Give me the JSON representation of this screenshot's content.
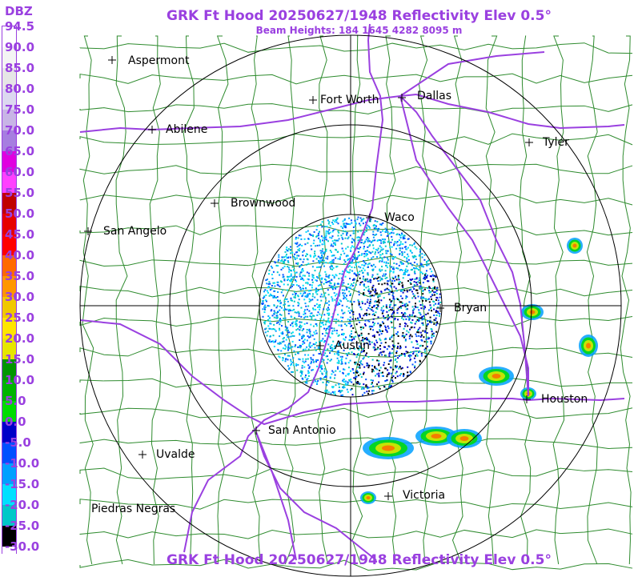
{
  "title_top": "GRK Ft Hood 20250627/1948 Reflectivity Elev 0.5°",
  "subtitle": "Beam Heights: 184 1645 4282 8095 m",
  "title_bottom": "GRK Ft Hood 20250627/1948 Reflectivity Elev 0.5°",
  "legend": {
    "unit": "DBZ",
    "labels": [
      "94.5",
      "90.0",
      "85.0",
      "80.0",
      "75.0",
      "70.0",
      "65.0",
      "60.0",
      "55.0",
      "50.0",
      "45.0",
      "40.0",
      "35.0",
      "30.0",
      "25.0",
      "20.0",
      "15.0",
      "10.0",
      "5.0",
      "0.0",
      "-5.0",
      "-10.0",
      "-15.0",
      "-20.0",
      "-25.0",
      "-30.0"
    ],
    "colors": [
      "#ffffff",
      "#f4f4f4",
      "#e6e6e6",
      "#dcd8f0",
      "#c8b4e6",
      "#a67ee0",
      "#e000e0",
      "#ff40ff",
      "#c00000",
      "#e60000",
      "#ff0000",
      "#ff6a00",
      "#ff9600",
      "#f0c800",
      "#ffe600",
      "#e6e600",
      "#009600",
      "#00b400",
      "#00dc00",
      "#0000c8",
      "#0050ff",
      "#00a0ff",
      "#00e0ff",
      "#00c8c8",
      "#000000",
      "#ffffff"
    ]
  },
  "cities": [
    {
      "name": "Aspermont",
      "marker": "plus"
    },
    {
      "name": "Fort Worth",
      "marker": "plus"
    },
    {
      "name": "Dallas",
      "marker": "plus"
    },
    {
      "name": "Abilene",
      "marker": "plus"
    },
    {
      "name": "Tyler",
      "marker": "plus"
    },
    {
      "name": "Brownwood",
      "marker": "plus"
    },
    {
      "name": "Waco",
      "marker": "plus"
    },
    {
      "name": "San Angelo",
      "marker": "plus"
    },
    {
      "name": "Bryan",
      "marker": "plus"
    },
    {
      "name": "Austin",
      "marker": "plus"
    },
    {
      "name": "Houston",
      "marker": "plus"
    },
    {
      "name": "San Antonio",
      "marker": "plus"
    },
    {
      "name": "Uvalde",
      "marker": "plus"
    },
    {
      "name": "Victoria",
      "marker": "plus"
    },
    {
      "name": "Piedras Negras",
      "marker": "none"
    }
  ],
  "colors": {
    "title": "#9a40e0",
    "county_lines": "#2e8b2e",
    "highways": "#9a40e0",
    "range_rings": "#000000"
  }
}
